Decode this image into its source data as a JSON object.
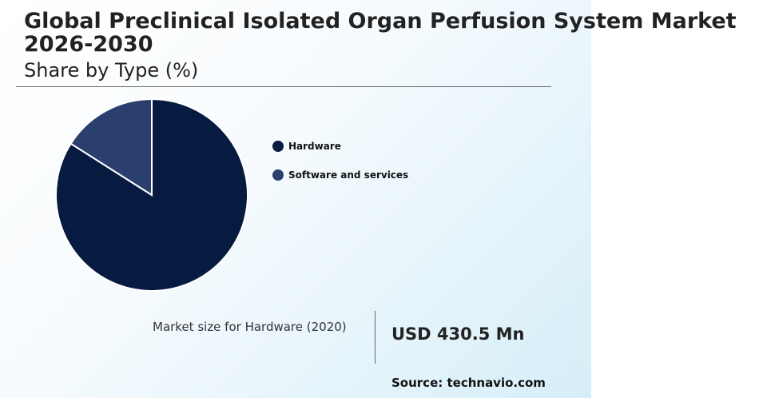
{
  "header": {
    "title": "Global Preclinical Isolated Organ Perfusion System Market 2026-2030",
    "subtitle": "Share by Type (%)"
  },
  "chart_data": {
    "type": "pie",
    "categories": [
      "Hardware",
      "Software and services"
    ],
    "values": [
      84,
      16
    ],
    "colors": [
      "#071a40",
      "#2a3f6e"
    ],
    "slice_border_color": "#ffffff",
    "legend_position": "right",
    "title": "Share by Type (%)"
  },
  "market": {
    "label": "Market size for Hardware (2020)",
    "value": "USD 430.5 Mn"
  },
  "source": "Source: technavio.com"
}
